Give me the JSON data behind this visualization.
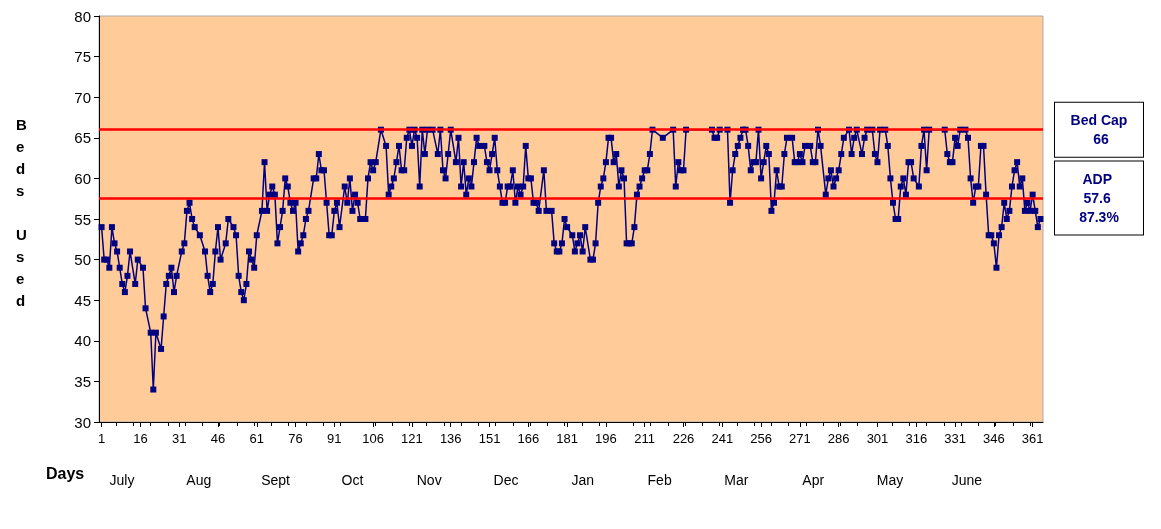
{
  "chart_data": {
    "type": "line",
    "xlabel": "Days",
    "ylabel": "Beds Used",
    "x": [
      1,
      2,
      3,
      4,
      5,
      6,
      7,
      8,
      9,
      10,
      11,
      12,
      14,
      15,
      17,
      18,
      20,
      21,
      22,
      24,
      25,
      26,
      27,
      28,
      29,
      30,
      32,
      33,
      34,
      35,
      36,
      37,
      39,
      41,
      42,
      43,
      44,
      45,
      46,
      47,
      49,
      50,
      52,
      53,
      54,
      55,
      56,
      57,
      58,
      59,
      60,
      61,
      63,
      64,
      65,
      66,
      67,
      68,
      69,
      70,
      71,
      72,
      73,
      74,
      75,
      76,
      77,
      78,
      79,
      80,
      81,
      83,
      84,
      85,
      86,
      87,
      88,
      89,
      90,
      91,
      92,
      93,
      95,
      96,
      97,
      98,
      99,
      100,
      101,
      103,
      104,
      105,
      106,
      107,
      109,
      111,
      112,
      113,
      114,
      115,
      116,
      117,
      118,
      119,
      120,
      121,
      122,
      123,
      124,
      125,
      126,
      127,
      129,
      131,
      132,
      133,
      134,
      135,
      136,
      138,
      139,
      140,
      141,
      142,
      143,
      144,
      145,
      146,
      147,
      149,
      150,
      151,
      152,
      153,
      154,
      155,
      156,
      157,
      158,
      159,
      160,
      161,
      162,
      163,
      164,
      165,
      166,
      167,
      168,
      169,
      170,
      172,
      173,
      175,
      176,
      177,
      178,
      179,
      180,
      181,
      183,
      184,
      185,
      186,
      187,
      188,
      190,
      191,
      192,
      193,
      194,
      195,
      196,
      197,
      198,
      199,
      200,
      201,
      202,
      203,
      204,
      205,
      206,
      207,
      208,
      209,
      210,
      211,
      212,
      213,
      214,
      218,
      222,
      223,
      224,
      225,
      226,
      227,
      237,
      238,
      239,
      240,
      243,
      244,
      245,
      246,
      247,
      248,
      249,
      250,
      251,
      252,
      253,
      254,
      255,
      256,
      257,
      258,
      259,
      260,
      261,
      262,
      263,
      264,
      265,
      266,
      268,
      269,
      270,
      271,
      272,
      273,
      275,
      276,
      277,
      278,
      279,
      281,
      282,
      283,
      284,
      285,
      286,
      287,
      288,
      290,
      291,
      292,
      293,
      295,
      296,
      297,
      299,
      300,
      301,
      302,
      304,
      305,
      306,
      307,
      308,
      309,
      310,
      311,
      312,
      313,
      314,
      315,
      317,
      318,
      319,
      320,
      321,
      327,
      328,
      329,
      330,
      331,
      332,
      333,
      335,
      336,
      337,
      338,
      339,
      340,
      341,
      342,
      343,
      344,
      345,
      346,
      347,
      348,
      349,
      350,
      351,
      352,
      353,
      354,
      355,
      356,
      357,
      358,
      359,
      360,
      361,
      362,
      363,
      364
    ],
    "series": [
      {
        "color": "#000080",
        "values": [
          54,
          50,
          50,
          49,
          54,
          52,
          51,
          49,
          47,
          46,
          48,
          51,
          47,
          50,
          49,
          44,
          41,
          34,
          41,
          39,
          43,
          47,
          48,
          49,
          46,
          48,
          51,
          52,
          56,
          57,
          55,
          54,
          53,
          51,
          48,
          46,
          47,
          51,
          54,
          50,
          52,
          55,
          54,
          53,
          48,
          46,
          45,
          47,
          51,
          50,
          49,
          53,
          56,
          62,
          56,
          58,
          59,
          58,
          52,
          54,
          56,
          60,
          59,
          57,
          56,
          57,
          51,
          52,
          53,
          55,
          56,
          60,
          60,
          63,
          61,
          61,
          57,
          53,
          53,
          56,
          57,
          54,
          59,
          57,
          60,
          56,
          58,
          57,
          55,
          55,
          60,
          62,
          61,
          62,
          66,
          64,
          58,
          59,
          60,
          62,
          64,
          61,
          61,
          65,
          66,
          64,
          66,
          65,
          59,
          66,
          63,
          66,
          66,
          63,
          66,
          61,
          60,
          63,
          66,
          62,
          65,
          59,
          62,
          58,
          60,
          59,
          62,
          65,
          64,
          64,
          62,
          61,
          63,
          65,
          61,
          59,
          57,
          57,
          59,
          59,
          61,
          57,
          59,
          58,
          59,
          64,
          60,
          60,
          57,
          57,
          56,
          61,
          56,
          56,
          52,
          51,
          51,
          52,
          55,
          54,
          53,
          51,
          52,
          53,
          51,
          54,
          50,
          50,
          52,
          57,
          59,
          60,
          62,
          65,
          65,
          62,
          63,
          59,
          61,
          60,
          52,
          52,
          52,
          54,
          58,
          59,
          60,
          61,
          61,
          63,
          66,
          65,
          66,
          59,
          62,
          61,
          61,
          66,
          66,
          65,
          65,
          66,
          66,
          57,
          61,
          63,
          64,
          65,
          66,
          66,
          64,
          61,
          62,
          62,
          66,
          60,
          62,
          64,
          63,
          56,
          57,
          61,
          59,
          59,
          63,
          65,
          65,
          62,
          62,
          63,
          62,
          64,
          64,
          62,
          62,
          66,
          64,
          58,
          60,
          61,
          59,
          60,
          61,
          63,
          65,
          66,
          63,
          65,
          66,
          63,
          65,
          66,
          66,
          63,
          62,
          66,
          66,
          64,
          60,
          57,
          55,
          55,
          59,
          60,
          58,
          62,
          62,
          60,
          59,
          64,
          66,
          61,
          66,
          66,
          63,
          62,
          62,
          65,
          64,
          66,
          66,
          65,
          60,
          57,
          59,
          59,
          64,
          64,
          58,
          53,
          53,
          52,
          49,
          53,
          54,
          57,
          55,
          56,
          59,
          61,
          62,
          59,
          60,
          56,
          57,
          56,
          58,
          56,
          54,
          55
        ]
      }
    ],
    "xlim": [
      0,
      365
    ],
    "xticks": [
      1,
      16,
      31,
      46,
      61,
      76,
      91,
      106,
      121,
      136,
      151,
      166,
      181,
      196,
      211,
      226,
      241,
      256,
      271,
      286,
      301,
      316,
      331,
      346,
      361
    ],
    "ylim": [
      30,
      80
    ],
    "yticks": [
      30,
      35,
      40,
      45,
      50,
      55,
      60,
      65,
      70,
      75,
      80
    ],
    "ref_lines": [
      {
        "axis": "y",
        "value": 66,
        "label": "Bed Cap 66",
        "color": "#ff0000"
      },
      {
        "axis": "y",
        "value": 57.6,
        "label": "ADP 57.6 87.3%",
        "color": "#ff0000"
      }
    ],
    "annotations": [
      "July",
      "Aug",
      "Sept",
      "Oct",
      "Nov",
      "Dec",
      "Jan",
      "Feb",
      "Mar",
      "Apr",
      "May",
      "June"
    ],
    "marker": "square",
    "line_style": "solid",
    "grid": false
  }
}
